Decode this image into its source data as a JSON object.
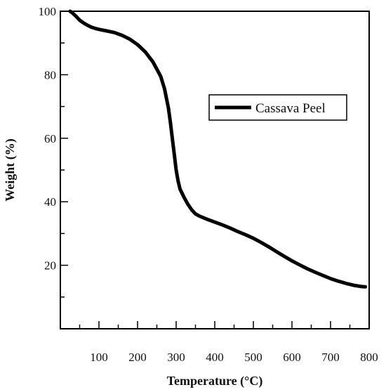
{
  "chart_data": {
    "type": "line",
    "title": "",
    "xlabel": "Temperature (°C)",
    "ylabel": "Weight (%)",
    "xlim": [
      0,
      800
    ],
    "ylim": [
      0,
      100
    ],
    "grid": false,
    "legend_placement": "top-right",
    "x_ticks_labeled": [
      100,
      200,
      300,
      400,
      500,
      600,
      700,
      800
    ],
    "x_ticks_minor": [
      50,
      150,
      250,
      350,
      450,
      550,
      650,
      750
    ],
    "y_ticks_labeled": [
      20,
      40,
      60,
      80,
      100
    ],
    "y_ticks_minor": [
      10,
      30,
      50,
      70,
      90
    ],
    "series": [
      {
        "name": "Cassava Peel",
        "color": "#000000",
        "x": [
          25,
          30,
          40,
          50,
          60,
          70,
          80,
          90,
          100,
          120,
          140,
          160,
          180,
          200,
          220,
          240,
          260,
          270,
          280,
          285,
          290,
          295,
          300,
          305,
          310,
          320,
          330,
          340,
          350,
          360,
          370,
          380,
          400,
          420,
          440,
          460,
          480,
          500,
          520,
          540,
          560,
          580,
          600,
          620,
          640,
          660,
          680,
          700,
          720,
          740,
          760,
          780,
          790
        ],
        "y": [
          100,
          99.6,
          98.5,
          97.2,
          96.3,
          95.6,
          95.0,
          94.6,
          94.3,
          93.8,
          93.3,
          92.4,
          91.2,
          89.5,
          87.2,
          84.0,
          79.5,
          75.5,
          69.5,
          65.0,
          60.0,
          55.0,
          50.0,
          46.5,
          44.0,
          41.5,
          39.3,
          37.5,
          36.2,
          35.5,
          35.0,
          34.5,
          33.6,
          32.7,
          31.7,
          30.6,
          29.6,
          28.5,
          27.2,
          25.8,
          24.3,
          22.8,
          21.4,
          20.1,
          18.9,
          17.8,
          16.8,
          15.8,
          15.0,
          14.3,
          13.7,
          13.3,
          13.2
        ]
      }
    ]
  }
}
